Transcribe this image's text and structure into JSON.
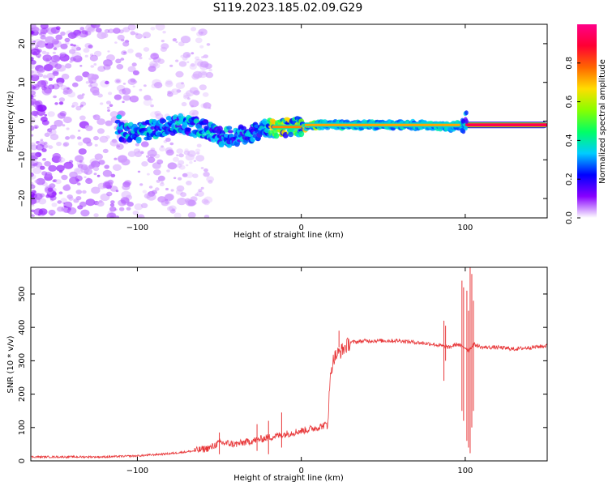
{
  "title": "S119.2023.185.02.09.G29",
  "chart_data": [
    {
      "type": "heatmap",
      "xlabel": "Height of straight line (km)",
      "ylabel": "Frequency (Hz)",
      "xlim": [
        -165,
        150
      ],
      "ylim": [
        -25,
        25
      ],
      "xticks": [
        -100,
        0,
        100
      ],
      "yticks": [
        -20,
        -10,
        0,
        10,
        20
      ],
      "colorbar": {
        "label": "Normalized spectral amplitude",
        "range": [
          0,
          1
        ],
        "ticks": [
          0.0,
          0.2,
          0.4,
          0.6,
          0.8
        ],
        "colormap": [
          "#ffffff",
          "#8800ff",
          "#0000ff",
          "#00ccff",
          "#00ff66",
          "#88ff00",
          "#ffdd00",
          "#ff6600",
          "#ff0033",
          "#ff0088"
        ]
      },
      "ridge": {
        "x": [
          -110,
          -100,
          -90,
          -80,
          -70,
          -60,
          -50,
          -40,
          -30,
          -20,
          -10,
          0,
          10,
          50,
          75,
          90,
          100,
          150
        ],
        "y": [
          -3,
          -3,
          -2,
          -1,
          -1,
          -2,
          -4,
          -4,
          -3,
          -2,
          -1.5,
          -1.5,
          -1,
          -1,
          -1,
          -1.5,
          -1,
          -1
        ]
      }
    },
    {
      "type": "line",
      "xlabel": "Height of straight line (km)",
      "ylabel": "SNR (10 * v/v)",
      "xlim": [
        -165,
        150
      ],
      "ylim": [
        0,
        580
      ],
      "xticks": [
        -100,
        0,
        100
      ],
      "yticks": [
        0,
        100,
        200,
        300,
        400,
        500
      ],
      "color": "#e8383a",
      "segments": [
        {
          "x": [
            -165,
            -120,
            -100,
            -80,
            -65,
            -55,
            -50,
            -40,
            -30,
            -20,
            -10,
            0,
            10,
            16,
            18,
            20,
            30,
            40,
            50,
            60,
            70,
            80,
            85,
            90,
            95,
            99,
            100,
            102,
            105,
            110,
            120,
            130,
            140,
            150
          ],
          "y": [
            12,
            12,
            15,
            22,
            30,
            40,
            55,
            50,
            60,
            70,
            80,
            90,
            100,
            110,
            270,
            310,
            355,
            360,
            360,
            360,
            355,
            350,
            345,
            340,
            350,
            340,
            340,
            330,
            350,
            340,
            340,
            335,
            340,
            345
          ]
        }
      ],
      "spikes": [
        {
          "x": -12,
          "ymin": 40,
          "ymax": 145
        },
        {
          "x": -20,
          "ymin": 20,
          "ymax": 120
        },
        {
          "x": -27,
          "ymin": 30,
          "ymax": 110
        },
        {
          "x": -50,
          "ymin": 20,
          "ymax": 85
        },
        {
          "x": 23,
          "ymin": 340,
          "ymax": 390
        },
        {
          "x": 87,
          "ymin": 240,
          "ymax": 420
        },
        {
          "x": 88,
          "ymin": 300,
          "ymax": 405
        },
        {
          "x": 98,
          "ymin": 150,
          "ymax": 540
        },
        {
          "x": 99,
          "ymin": 120,
          "ymax": 520
        },
        {
          "x": 101,
          "ymin": 60,
          "ymax": 510
        },
        {
          "x": 102,
          "ymin": 40,
          "ymax": 450
        },
        {
          "x": 103,
          "ymin": 23,
          "ymax": 580
        },
        {
          "x": 104,
          "ymin": 100,
          "ymax": 560
        },
        {
          "x": 105,
          "ymin": 150,
          "ymax": 480
        }
      ]
    }
  ]
}
